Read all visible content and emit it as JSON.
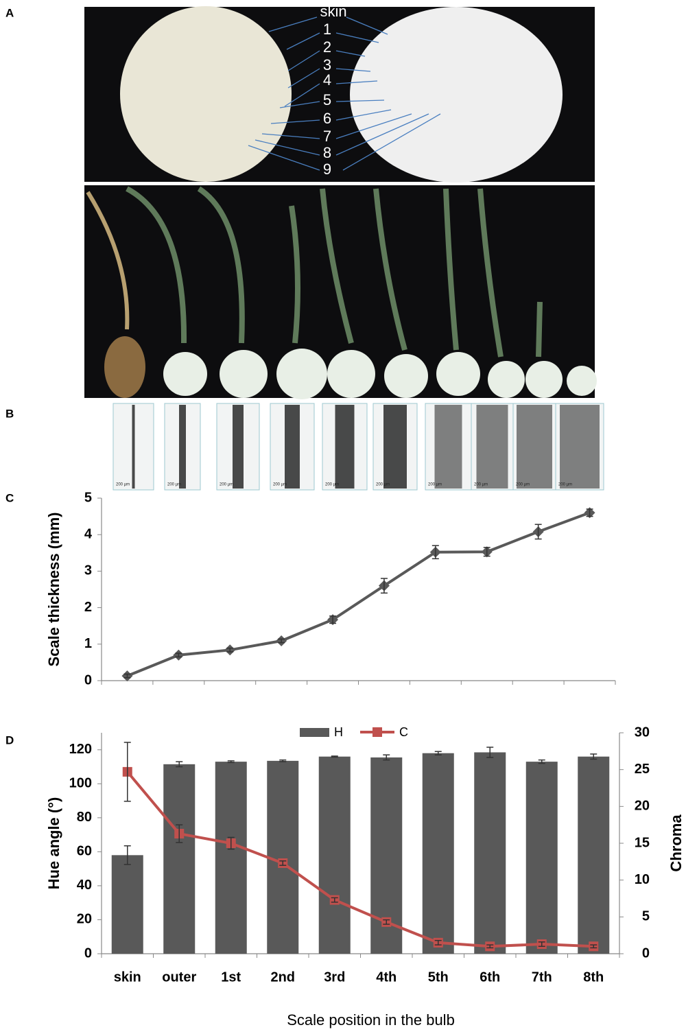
{
  "panel_labels": [
    "A",
    "B",
    "C",
    "D"
  ],
  "photo_labels": [
    "skin",
    "1",
    "2",
    "3",
    "4",
    "5",
    "6",
    "7",
    "8",
    "9"
  ],
  "scale_bar_labels": [
    "200 µm",
    "200 µm",
    "200 µm",
    "200 µm",
    "200 µm",
    "200 µm",
    "200 µm",
    "200 µm",
    "200 µm",
    "200 µm"
  ],
  "chart_data": [
    {
      "type": "line",
      "ylabel": "Scale thickness (mm)",
      "categories": [
        null,
        null,
        null,
        null,
        null,
        null,
        null,
        null,
        null,
        null
      ],
      "series": [
        {
          "color": "#595959",
          "values": [
            0.13,
            0.7,
            0.84,
            1.09,
            1.67,
            2.6,
            3.52,
            3.53,
            4.08,
            4.6
          ],
          "errors": [
            0.05,
            0.05,
            0.05,
            0.05,
            0.1,
            0.2,
            0.18,
            0.12,
            0.2,
            0.1
          ]
        }
      ],
      "ylim": [
        0,
        5
      ],
      "yticks": [
        0,
        1,
        2,
        3,
        4,
        5
      ]
    },
    {
      "type": "bar",
      "xlabel": "Scale position in the bulb",
      "ylabel": "Hue angle (°)",
      "y2label": "Chroma",
      "categories": [
        "skin",
        "outer",
        "1st",
        "2nd",
        "3rd",
        "4th",
        "5th",
        "6th",
        "7th",
        "8th"
      ],
      "series": [
        {
          "name": "H",
          "type": "bar",
          "color": "#595959",
          "values": [
            58,
            111.5,
            113,
            113.5,
            116,
            115.5,
            118,
            118.5,
            113,
            116
          ],
          "errors": [
            5.5,
            1.5,
            0.5,
            0.5,
            0.3,
            1.5,
            1,
            3,
            1,
            1.5
          ]
        },
        {
          "name": "C",
          "type": "line",
          "axis": "y2",
          "color": "#c0504d",
          "values": [
            24.7,
            16.3,
            15,
            12.3,
            7.3,
            4.3,
            1.5,
            1,
            1.3,
            1
          ],
          "errors": [
            4,
            1.2,
            0.8,
            0.3,
            0.3,
            0.3,
            0.3,
            0.2,
            0.3,
            0.2
          ]
        }
      ],
      "ylim": [
        0,
        130
      ],
      "yticks": [
        0,
        20,
        40,
        60,
        80,
        100,
        120
      ],
      "y2lim": [
        0,
        30
      ],
      "y2ticks": [
        0,
        5,
        10,
        15,
        20,
        25,
        30
      ]
    }
  ]
}
